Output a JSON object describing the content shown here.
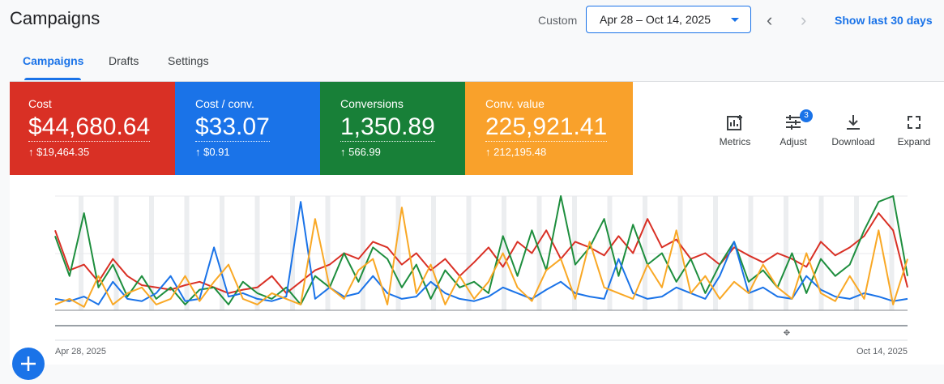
{
  "header": {
    "title": "Campaigns",
    "period_label": "Custom",
    "date_range": "Apr 28 – Oct 14, 2025",
    "shortcut": "Show last 30 days"
  },
  "tabs": [
    "Campaigns",
    "Drafts",
    "Settings"
  ],
  "scorecards": [
    {
      "label": "Cost",
      "value": "$44,680.64",
      "change": "↑ $19,464.35"
    },
    {
      "label": "Cost / conv.",
      "value": "$33.07",
      "change": "↑ $0.91"
    },
    {
      "label": "Conversions",
      "value": "1,350.89",
      "change": "↑ 566.99"
    },
    {
      "label": "Conv. value",
      "value": "225,921.41",
      "change": "↑ 212,195.48"
    }
  ],
  "tools": [
    {
      "label": "Metrics"
    },
    {
      "label": "Adjust",
      "badge": "3"
    },
    {
      "label": "Download"
    },
    {
      "label": "Expand"
    }
  ],
  "chart_data": {
    "type": "line",
    "categories": [
      "Apr 28, 2025",
      null,
      null,
      null,
      null,
      null,
      null,
      null,
      null,
      null,
      null,
      null,
      null,
      null,
      null,
      null,
      null,
      null,
      null,
      null,
      null,
      null,
      null,
      null,
      null,
      null,
      null,
      null,
      null,
      null,
      null,
      null,
      null,
      null,
      null,
      null,
      null,
      null,
      null,
      null,
      null,
      null,
      null,
      null,
      null,
      null,
      null,
      null,
      null,
      null,
      null,
      null,
      null,
      null,
      null,
      null,
      null,
      null,
      null,
      "Oct 14, 2025"
    ],
    "ylim": [
      0,
      100
    ],
    "series": [
      {
        "color": "#d93025",
        "values": [
          70,
          35,
          40,
          25,
          45,
          30,
          22,
          20,
          18,
          22,
          25,
          20,
          15,
          18,
          20,
          30,
          15,
          25,
          35,
          40,
          50,
          45,
          60,
          55,
          40,
          50,
          35,
          45,
          30,
          42,
          55,
          38,
          60,
          50,
          70,
          45,
          60,
          55,
          48,
          65,
          50,
          80,
          55,
          62,
          45,
          50,
          40,
          55,
          48,
          42,
          50,
          45,
          38,
          60,
          48,
          55,
          65,
          85,
          70,
          20
        ]
      },
      {
        "color": "#1e8e3e",
        "values": [
          65,
          30,
          85,
          20,
          40,
          12,
          30,
          10,
          20,
          5,
          18,
          20,
          5,
          25,
          15,
          10,
          20,
          5,
          30,
          20,
          50,
          25,
          55,
          45,
          20,
          40,
          10,
          35,
          20,
          25,
          15,
          65,
          30,
          70,
          35,
          100,
          40,
          55,
          80,
          30,
          75,
          40,
          50,
          25,
          45,
          15,
          40,
          60,
          25,
          35,
          20,
          50,
          15,
          45,
          30,
          40,
          70,
          95,
          100,
          30
        ]
      },
      {
        "color": "#1a73e8",
        "values": [
          10,
          8,
          12,
          5,
          25,
          10,
          8,
          15,
          30,
          8,
          10,
          55,
          12,
          15,
          10,
          8,
          12,
          95,
          10,
          20,
          12,
          15,
          30,
          15,
          10,
          12,
          25,
          15,
          10,
          8,
          12,
          20,
          15,
          10,
          18,
          25,
          15,
          12,
          10,
          45,
          15,
          10,
          12,
          20,
          15,
          10,
          30,
          60,
          15,
          20,
          12,
          10,
          30,
          18,
          12,
          10,
          15,
          12,
          8,
          10
        ]
      },
      {
        "color": "#f9a825",
        "values": [
          5,
          10,
          3,
          30,
          5,
          15,
          20,
          5,
          10,
          30,
          8,
          25,
          40,
          10,
          5,
          15,
          10,
          5,
          80,
          20,
          10,
          35,
          45,
          5,
          90,
          15,
          40,
          5,
          30,
          10,
          25,
          50,
          20,
          8,
          35,
          45,
          10,
          60,
          20,
          15,
          10,
          40,
          20,
          70,
          15,
          30,
          10,
          25,
          15,
          40,
          20,
          10,
          50,
          15,
          8,
          30,
          10,
          70,
          5,
          45
        ]
      }
    ]
  }
}
